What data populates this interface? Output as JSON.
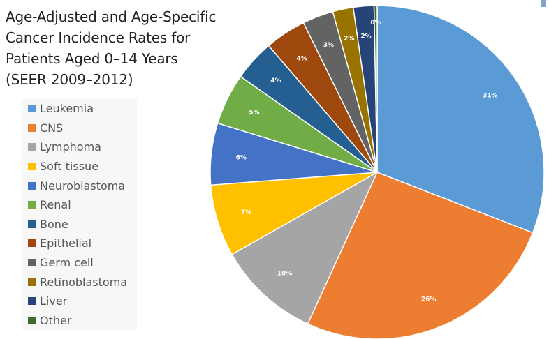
{
  "title_lines": [
    "Age-Adjusted and Age-Specific",
    "Cancer Incidence Rates for",
    "Patients Aged 0–14 Years",
    "(SEER 2009–2012)"
  ],
  "chart_data": {
    "type": "pie",
    "title": "Age-Adjusted and Age-Specific Cancer Incidence Rates for Patients Aged 0–14 Years (SEER 2009–2012)",
    "legend_position": "left",
    "start_angle_deg": 0,
    "direction": "clockwise",
    "slices": [
      {
        "name": "Leukemia",
        "value": 31,
        "label": "31%",
        "color": "#5b9bd5"
      },
      {
        "name": "CNS",
        "value": 26,
        "label": "26%",
        "color": "#ed7d31"
      },
      {
        "name": "Lymphoma",
        "value": 10,
        "label": "10%",
        "color": "#a5a5a5"
      },
      {
        "name": "Soft tissue",
        "value": 7,
        "label": "7%",
        "color": "#ffc000"
      },
      {
        "name": "Neuroblastoma",
        "value": 6,
        "label": "6%",
        "color": "#4472c4"
      },
      {
        "name": "Renal",
        "value": 5,
        "label": "5%",
        "color": "#70ad47"
      },
      {
        "name": "Bone",
        "value": 4,
        "label": "4%",
        "color": "#255e91"
      },
      {
        "name": "Epithelial",
        "value": 4,
        "label": "4%",
        "color": "#9e480e"
      },
      {
        "name": "Germ cell",
        "value": 3,
        "label": "3%",
        "color": "#636363"
      },
      {
        "name": "Retinoblastoma",
        "value": 2,
        "label": "2%",
        "color": "#997300"
      },
      {
        "name": "Liver",
        "value": 2,
        "label": "2%",
        "color": "#264478"
      },
      {
        "name": "Other",
        "value": 0.3,
        "label": "0%",
        "color": "#43682b"
      }
    ]
  },
  "colors": {
    "background": "#ffffff",
    "legend_background": "#f7f7f7",
    "title_text": "#222222",
    "legend_text": "#555555",
    "corner_mark": "#7fa6c8"
  }
}
